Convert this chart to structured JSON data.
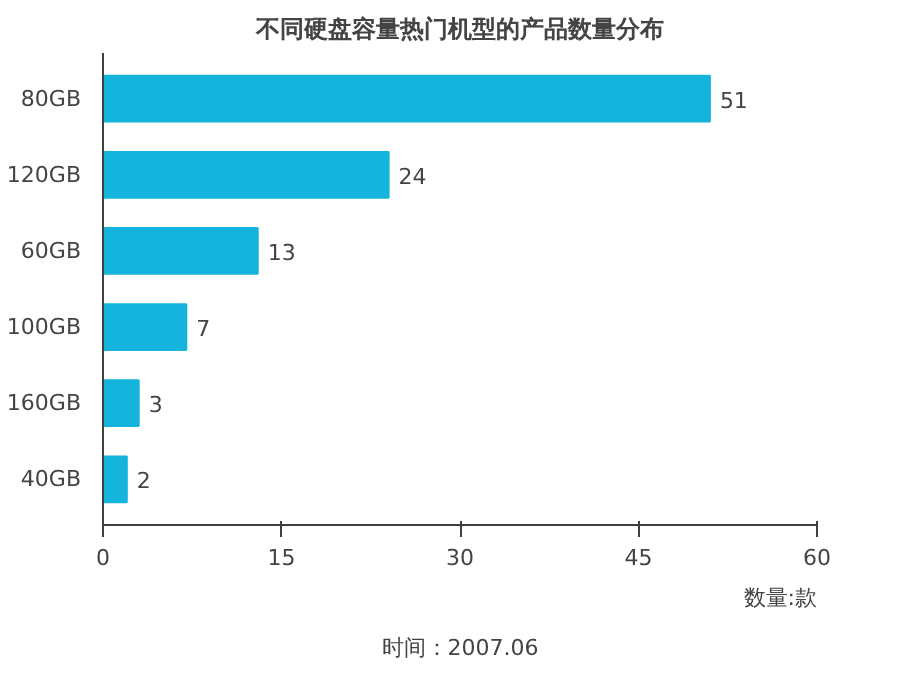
{
  "chart_data": {
    "type": "bar",
    "orientation": "horizontal",
    "title": "不同硬盘容量热门机型的产品数量分布",
    "categories": [
      "80GB",
      "120GB",
      "60GB",
      "100GB",
      "160GB",
      "40GB"
    ],
    "values": [
      51,
      24,
      13,
      7,
      3,
      2
    ],
    "color": "#14b4dc",
    "xlim": [
      0,
      60
    ],
    "xticks": [
      0,
      15,
      30,
      45,
      60
    ],
    "xlabel": "数量:款",
    "data_labels": true,
    "grid": false,
    "annotations": [
      "时间：2007.06"
    ]
  }
}
